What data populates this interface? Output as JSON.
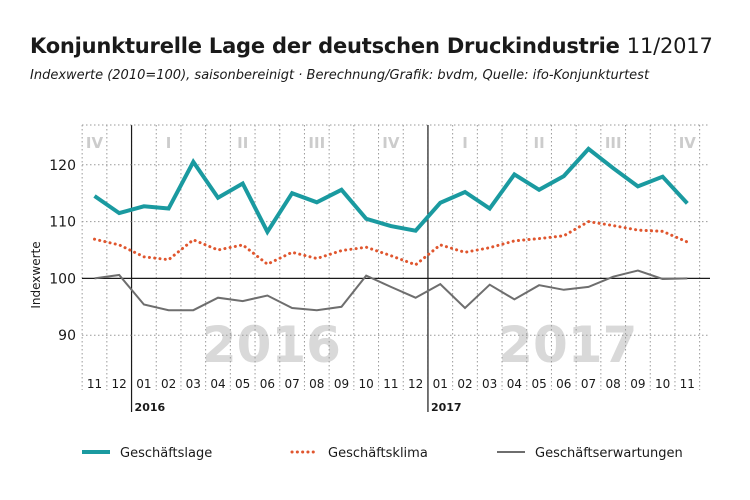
{
  "header": {
    "title": "Konjunkturelle Lage der deutschen Druckindustrie",
    "date": "11/2017",
    "subtitle": "Indexwerte (2010=100), saisonbereinigt · Berechnung/Grafik: bvdm, Quelle: ifo-Konjunkturtest"
  },
  "colors": {
    "lage": "#1a9aa0",
    "klima": "#e0562e",
    "erwartungen": "#6e6e6e",
    "quarter_label": "#cccccc",
    "watermark": "#d9d9d9"
  },
  "chart_data": {
    "type": "line",
    "ylabel": "Indexwerte",
    "ylim": [
      83,
      127
    ],
    "yticks": [
      90,
      100,
      110,
      120
    ],
    "reference_line": 100,
    "x": [
      "11",
      "12",
      "01",
      "02",
      "03",
      "04",
      "05",
      "06",
      "07",
      "08",
      "09",
      "10",
      "11",
      "12",
      "01",
      "02",
      "03",
      "04",
      "05",
      "06",
      "07",
      "08",
      "09",
      "10",
      "11"
    ],
    "year_labels": [
      {
        "label": "2016",
        "start_index": 2
      },
      {
        "label": "2017",
        "start_index": 14
      }
    ],
    "quarter_labels": [
      {
        "label": "IV",
        "index": 0
      },
      {
        "label": "I",
        "index": 3
      },
      {
        "label": "II",
        "index": 6
      },
      {
        "label": "III",
        "index": 9
      },
      {
        "label": "IV",
        "index": 12
      },
      {
        "label": "I",
        "index": 15
      },
      {
        "label": "II",
        "index": 18
      },
      {
        "label": "III",
        "index": 21
      },
      {
        "label": "IV",
        "index": 24
      }
    ],
    "watermarks": [
      {
        "label": "2016",
        "index": 7
      },
      {
        "label": "2017",
        "index": 19
      }
    ],
    "series": [
      {
        "name": "Geschäftslage",
        "key": "lage",
        "style": "solid-thick",
        "values": [
          114.5,
          111.5,
          112.7,
          112.3,
          120.5,
          114.2,
          116.7,
          108.2,
          115.0,
          113.4,
          115.6,
          110.5,
          109.2,
          108.4,
          113.3,
          115.2,
          112.3,
          118.3,
          115.6,
          118.0,
          122.8,
          119.4,
          116.2,
          117.9,
          113.2
        ]
      },
      {
        "name": "Geschäftsklima",
        "key": "klima",
        "style": "dotted",
        "values": [
          106.9,
          105.9,
          103.8,
          103.3,
          106.8,
          105.0,
          105.9,
          102.5,
          104.6,
          103.5,
          104.9,
          105.5,
          104.0,
          102.4,
          105.9,
          104.6,
          105.4,
          106.6,
          107.0,
          107.5,
          110.0,
          109.3,
          108.5,
          108.3,
          106.4
        ]
      },
      {
        "name": "Geschäftserwartungen",
        "key": "erwartungen",
        "style": "solid-thin",
        "values": [
          100.0,
          100.6,
          95.4,
          94.4,
          94.4,
          96.6,
          96.0,
          97.0,
          94.8,
          94.4,
          95.0,
          100.5,
          98.5,
          96.6,
          99.0,
          94.8,
          98.9,
          96.3,
          98.8,
          98.0,
          98.5,
          100.3,
          101.4,
          99.9,
          100.0
        ]
      }
    ],
    "legend_position": "bottom"
  }
}
